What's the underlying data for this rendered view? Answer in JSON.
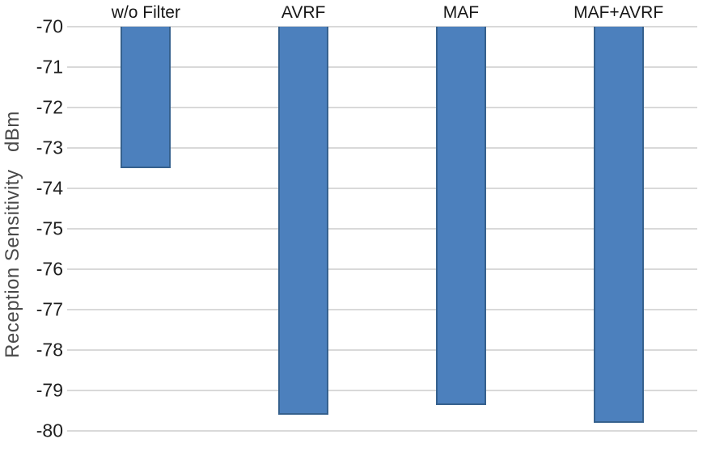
{
  "chart_data": {
    "type": "bar",
    "title": "",
    "ylabel": "Reception Sensitivity   dBm",
    "xlabel": "",
    "categories": [
      "w/o Filter",
      "AVRF",
      "MAF",
      "MAF+AVRF"
    ],
    "values": [
      -73.5,
      -79.6,
      -79.35,
      -79.8
    ],
    "bars_anchored_at": -70,
    "ylim": [
      -80,
      -70
    ],
    "yticks": [
      -70,
      -71,
      -72,
      -73,
      -74,
      -75,
      -76,
      -77,
      -78,
      -79,
      -80
    ],
    "grid": true,
    "legend": "none",
    "orientation": "vertical-hanging",
    "colors": {
      "bar_fill": "#4c80bd",
      "bar_border": "#36618e",
      "gridline": "#d9d9d9",
      "tick_text": "#1f1f1f",
      "category_text": "#161616",
      "axis_title_text": "#4a4a4a",
      "background": "#ffffff"
    }
  }
}
